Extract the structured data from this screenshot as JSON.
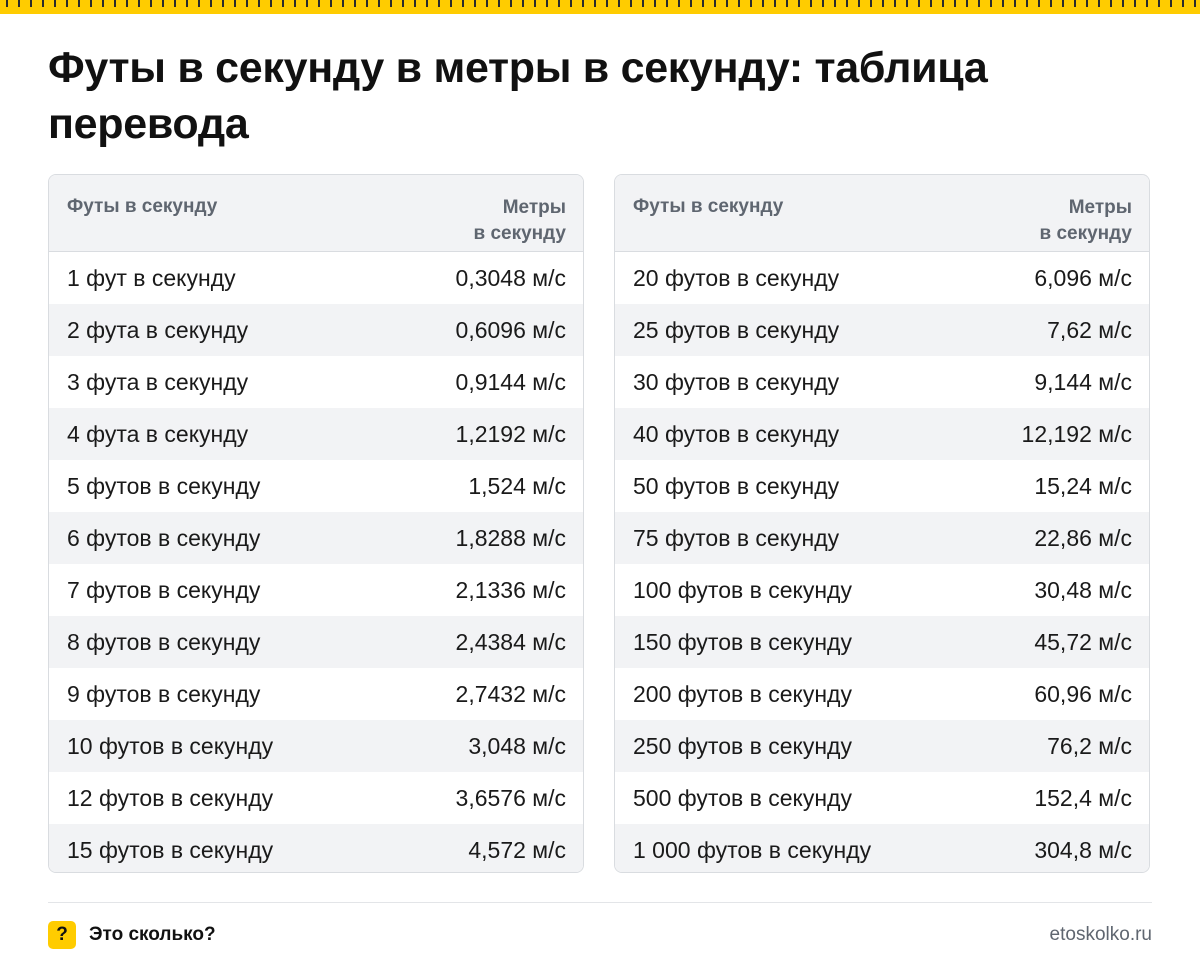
{
  "title": "Футы в секунду в метры в секунду: таблица перевода",
  "left_table": {
    "header": {
      "col_a": "Футы в секунду",
      "col_b_line1": "Метры",
      "col_b_line2": "в секунду"
    },
    "rows": [
      {
        "a": "1 фут в секунду",
        "b": "0,3048 м/с"
      },
      {
        "a": "2 фута в секунду",
        "b": "0,6096 м/с"
      },
      {
        "a": "3 фута в секунду",
        "b": "0,9144 м/с"
      },
      {
        "a": "4 фута в секунду",
        "b": "1,2192 м/с"
      },
      {
        "a": "5 футов в секунду",
        "b": "1,524 м/с"
      },
      {
        "a": "6 футов в секунду",
        "b": "1,8288 м/с"
      },
      {
        "a": "7 футов в секунду",
        "b": "2,1336 м/с"
      },
      {
        "a": "8 футов в секунду",
        "b": "2,4384 м/с"
      },
      {
        "a": "9 футов в секунду",
        "b": "2,7432 м/с"
      },
      {
        "a": "10 футов в секунду",
        "b": "3,048 м/с"
      },
      {
        "a": "12 футов в секунду",
        "b": "3,6576 м/с"
      },
      {
        "a": "15 футов в секунду",
        "b": "4,572 м/с"
      }
    ]
  },
  "right_table": {
    "header": {
      "col_a": "Футы в секунду",
      "col_b_line1": "Метры",
      "col_b_line2": "в секунду"
    },
    "rows": [
      {
        "a": "20 футов в секунду",
        "b": "6,096 м/с"
      },
      {
        "a": "25 футов в секунду",
        "b": "7,62 м/с"
      },
      {
        "a": "30 футов в секунду",
        "b": "9,144 м/с"
      },
      {
        "a": "40 футов в секунду",
        "b": "12,192 м/с"
      },
      {
        "a": "50 футов в секунду",
        "b": "15,24 м/с"
      },
      {
        "a": "75 футов в секунду",
        "b": "22,86 м/с"
      },
      {
        "a": "100 футов в секунду",
        "b": "30,48 м/с"
      },
      {
        "a": "150 футов в секунду",
        "b": "45,72 м/с"
      },
      {
        "a": "200 футов в секунду",
        "b": "60,96 м/с"
      },
      {
        "a": "250 футов в секунду",
        "b": "76,2 м/с"
      },
      {
        "a": "500 футов в секунду",
        "b": "152,4 м/с"
      },
      {
        "a": "1 000 футов в секунду",
        "b": "304,8 м/с"
      }
    ]
  },
  "footer": {
    "badge": "?",
    "brand": "Это сколько?",
    "site": "etoskolko.ru"
  },
  "colors": {
    "accent": "#ffcc00",
    "stripe": "#f2f3f5",
    "border": "#d9dce0",
    "header_text": "#5f6670"
  }
}
